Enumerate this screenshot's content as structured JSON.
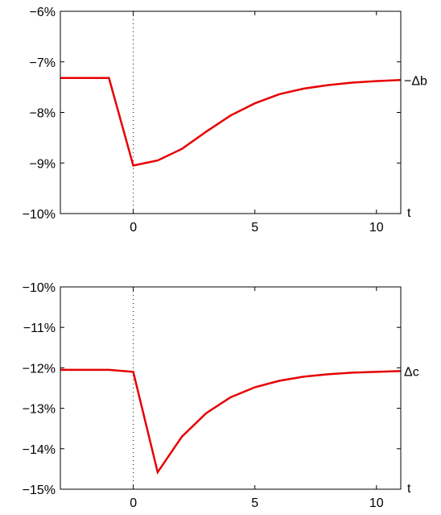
{
  "colors": {
    "line": "#e60000",
    "axis": "#000000"
  },
  "chart_data": [
    {
      "type": "line",
      "title": "",
      "xlabel": "t",
      "ylabel": "",
      "series_label": "−Δb",
      "xlim": [
        -3,
        11
      ],
      "ylim": [
        -10,
        -6
      ],
      "x_ticks": [
        0,
        5,
        10
      ],
      "x_tick_labels": [
        "0",
        "5",
        "10"
      ],
      "y_ticks": [
        -10,
        -9,
        -8,
        -7,
        -6
      ],
      "y_tick_labels": [
        "−10%",
        "−9%",
        "−8%",
        "−7%",
        "−6%"
      ],
      "vertical_reference_x": 0,
      "grid": false,
      "series": [
        {
          "x": [
            -3,
            -2,
            -1,
            0,
            1,
            2,
            3,
            4,
            5,
            6,
            7,
            8,
            9,
            10,
            11
          ],
          "y": [
            -7.32,
            -7.32,
            -7.32,
            -9.05,
            -8.95,
            -8.72,
            -8.38,
            -8.06,
            -7.82,
            -7.64,
            -7.53,
            -7.46,
            -7.41,
            -7.38,
            -7.36
          ]
        }
      ]
    },
    {
      "type": "line",
      "title": "",
      "xlabel": "t",
      "ylabel": "",
      "series_label": "Δc",
      "xlim": [
        -3,
        11
      ],
      "ylim": [
        -15,
        -10
      ],
      "x_ticks": [
        0,
        5,
        10
      ],
      "x_tick_labels": [
        "0",
        "5",
        "10"
      ],
      "y_ticks": [
        -15,
        -14,
        -13,
        -12,
        -11,
        -10
      ],
      "y_tick_labels": [
        "−15%",
        "−14%",
        "−13%",
        "−12%",
        "−11%",
        "−10%"
      ],
      "vertical_reference_x": 0,
      "grid": false,
      "series": [
        {
          "x": [
            -3,
            -2,
            -1,
            0,
            1,
            2,
            3,
            4,
            5,
            6,
            7,
            8,
            9,
            10,
            11
          ],
          "y": [
            -12.05,
            -12.05,
            -12.05,
            -12.1,
            -14.58,
            -13.7,
            -13.12,
            -12.73,
            -12.48,
            -12.32,
            -12.22,
            -12.16,
            -12.12,
            -12.1,
            -12.08
          ]
        }
      ]
    }
  ]
}
